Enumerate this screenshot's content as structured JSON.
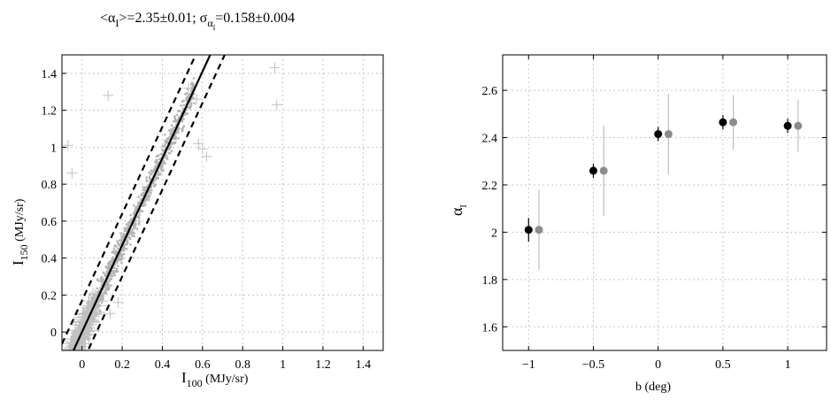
{
  "chart_data": [
    {
      "type": "scatter",
      "title": "<α_I>=2.35±0.01; σ_α_I=0.158±0.004",
      "title_parts": {
        "p1": "<α",
        "p1_sub": "I",
        "p2": ">=2.35±0.01; σ",
        "p3_greek": "α",
        "p3_sub": "I",
        "p4": "=0.158±0.004"
      },
      "xlabel": {
        "main": "I",
        "sub": "100",
        "unit": " (MJy/sr)"
      },
      "ylabel": {
        "main": "I",
        "sub": "150",
        "unit": " (MJy/sr)"
      },
      "xlim": [
        -0.1,
        1.5
      ],
      "ylim": [
        -0.1,
        1.5
      ],
      "xticks": [
        "0",
        "0.2",
        "0.4",
        "0.6",
        "0.8",
        "1",
        "1.2",
        "1.4"
      ],
      "yticks": [
        "0",
        "0.2",
        "0.4",
        "0.6",
        "0.8",
        "1",
        "1.2",
        "1.4"
      ],
      "grid": true,
      "fit_line": {
        "slope": 2.35,
        "intercept": 0.0
      },
      "envelope_lines": [
        {
          "slope": 2.35,
          "intercept": 0.17
        },
        {
          "slope": 2.35,
          "intercept": -0.17
        }
      ],
      "outliers": [
        {
          "x": 0.13,
          "y": 1.28
        },
        {
          "x": 0.96,
          "y": 1.43
        },
        {
          "x": 0.97,
          "y": 1.23
        },
        {
          "x": 0.57,
          "y": 1.26
        },
        {
          "x": -0.07,
          "y": 1.01
        },
        {
          "x": -0.05,
          "y": 0.86
        },
        {
          "x": 0.53,
          "y": 1.32
        },
        {
          "x": 0.6,
          "y": 0.99
        },
        {
          "x": 0.62,
          "y": 0.95
        },
        {
          "x": 0.58,
          "y": 1.02
        },
        {
          "x": 0.14,
          "y": 0.1
        },
        {
          "x": 0.18,
          "y": 0.16
        }
      ]
    },
    {
      "type": "scatter",
      "xlabel": "b (deg)",
      "ylabel": {
        "main": "α",
        "sub": "I"
      },
      "xlim": [
        -1.2,
        1.3
      ],
      "ylim": [
        1.5,
        2.75
      ],
      "xticks": [
        -1,
        -0.5,
        0,
        0.5,
        1
      ],
      "xtick_labels": [
        "−1",
        "−0.5",
        "0",
        "0.5",
        "1"
      ],
      "yticks": [
        1.6,
        1.8,
        2.0,
        2.2,
        2.4,
        2.6
      ],
      "ytick_labels": [
        "1.6",
        "1.8",
        "2",
        "2.2",
        "2.4",
        "2.6"
      ],
      "grid": true,
      "series": [
        {
          "color": "#000000",
          "points": [
            {
              "x": -1.0,
              "y": 2.01,
              "err": 0.05
            },
            {
              "x": -0.5,
              "y": 2.26,
              "err": 0.03
            },
            {
              "x": 0.0,
              "y": 2.415,
              "err": 0.03
            },
            {
              "x": 0.5,
              "y": 2.465,
              "err": 0.03
            },
            {
              "x": 1.0,
              "y": 2.45,
              "err": 0.03
            }
          ]
        },
        {
          "color": "#8c8c8c",
          "points": [
            {
              "x": -0.92,
              "y": 2.01,
              "err": 0.17
            },
            {
              "x": -0.42,
              "y": 2.26,
              "err": 0.19
            },
            {
              "x": 0.08,
              "y": 2.415,
              "err": 0.17
            },
            {
              "x": 0.58,
              "y": 2.465,
              "err": 0.115
            },
            {
              "x": 1.08,
              "y": 2.45,
              "err": 0.11
            }
          ]
        }
      ]
    }
  ]
}
